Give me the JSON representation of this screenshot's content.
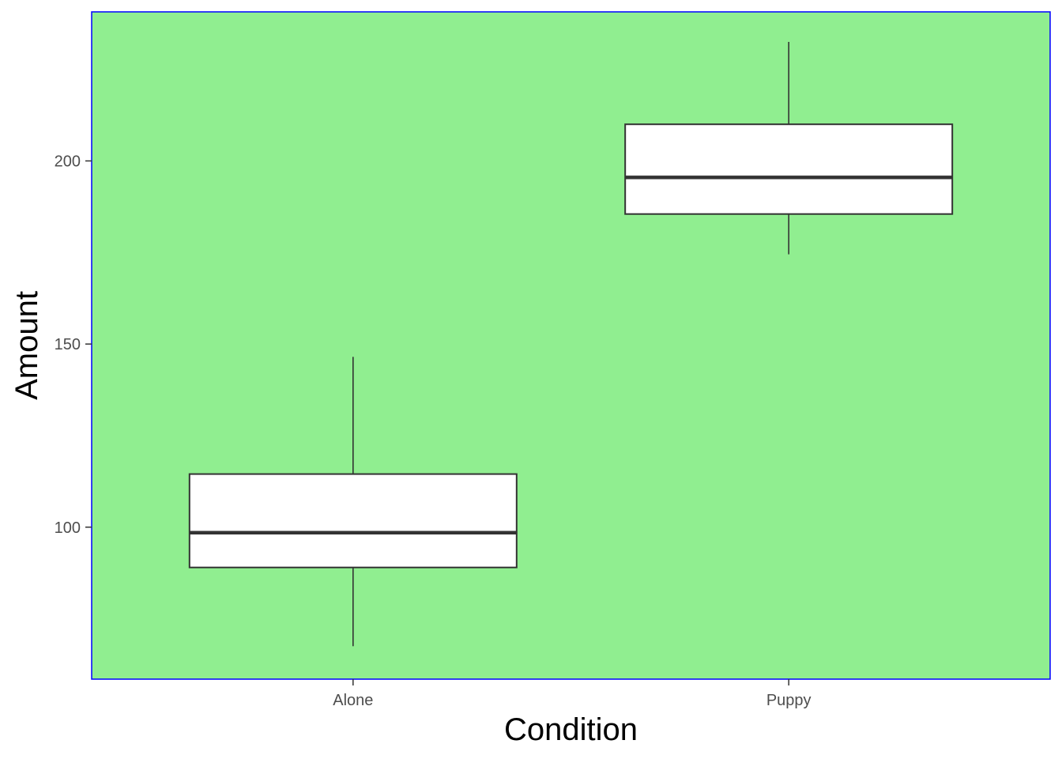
{
  "chart_data": {
    "type": "box",
    "title": "",
    "xlabel": "Condition",
    "ylabel": "Amount",
    "categories": [
      "Alone",
      "Puppy"
    ],
    "y_ticks": [
      100,
      150,
      200
    ],
    "ylim": [
      58.5,
      240.7
    ],
    "boxes": [
      {
        "category": "Alone",
        "whisker_low": 67.5,
        "q1": 89.0,
        "median": 98.5,
        "q3": 114.5,
        "whisker_high": 146.5
      },
      {
        "category": "Puppy",
        "whisker_low": 174.5,
        "q1": 185.5,
        "median": 195.5,
        "q3": 210.0,
        "whisker_high": 232.5
      }
    ],
    "grid": false,
    "legend": "none",
    "colors": {
      "panel_background": "#90ee90",
      "panel_border": "#0000ff",
      "box_fill": "#ffffff",
      "box_line": "#333333",
      "axis_line": "#333333",
      "tick_text": "#4d4d4d",
      "axis_title": "#000000"
    }
  }
}
